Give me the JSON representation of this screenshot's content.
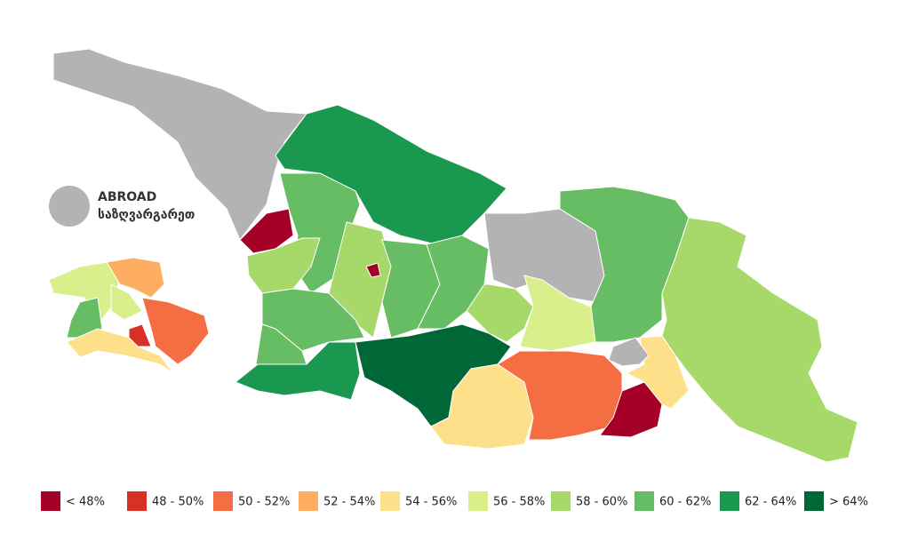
{
  "abroad": {
    "label": "ABROAD",
    "label_ka": "საზღვარგარეთ",
    "color": "#b3b3b3"
  },
  "legend": [
    {
      "label": "< 48%",
      "color": "#a50026"
    },
    {
      "label": "48 - 50%",
      "color": "#d73027"
    },
    {
      "label": "50 - 52%",
      "color": "#f46d43"
    },
    {
      "label": "52 - 54%",
      "color": "#fdae61"
    },
    {
      "label": "54 - 56%",
      "color": "#fee08b"
    },
    {
      "label": "56 - 58%",
      "color": "#d9ef8b"
    },
    {
      "label": "58 - 60%",
      "color": "#a6d96a"
    },
    {
      "label": "60 - 62%",
      "color": "#66bd63"
    },
    {
      "label": "62 - 64%",
      "color": "#1a9850"
    },
    {
      "label": "> 64%",
      "color": "#006837"
    }
  ]
}
